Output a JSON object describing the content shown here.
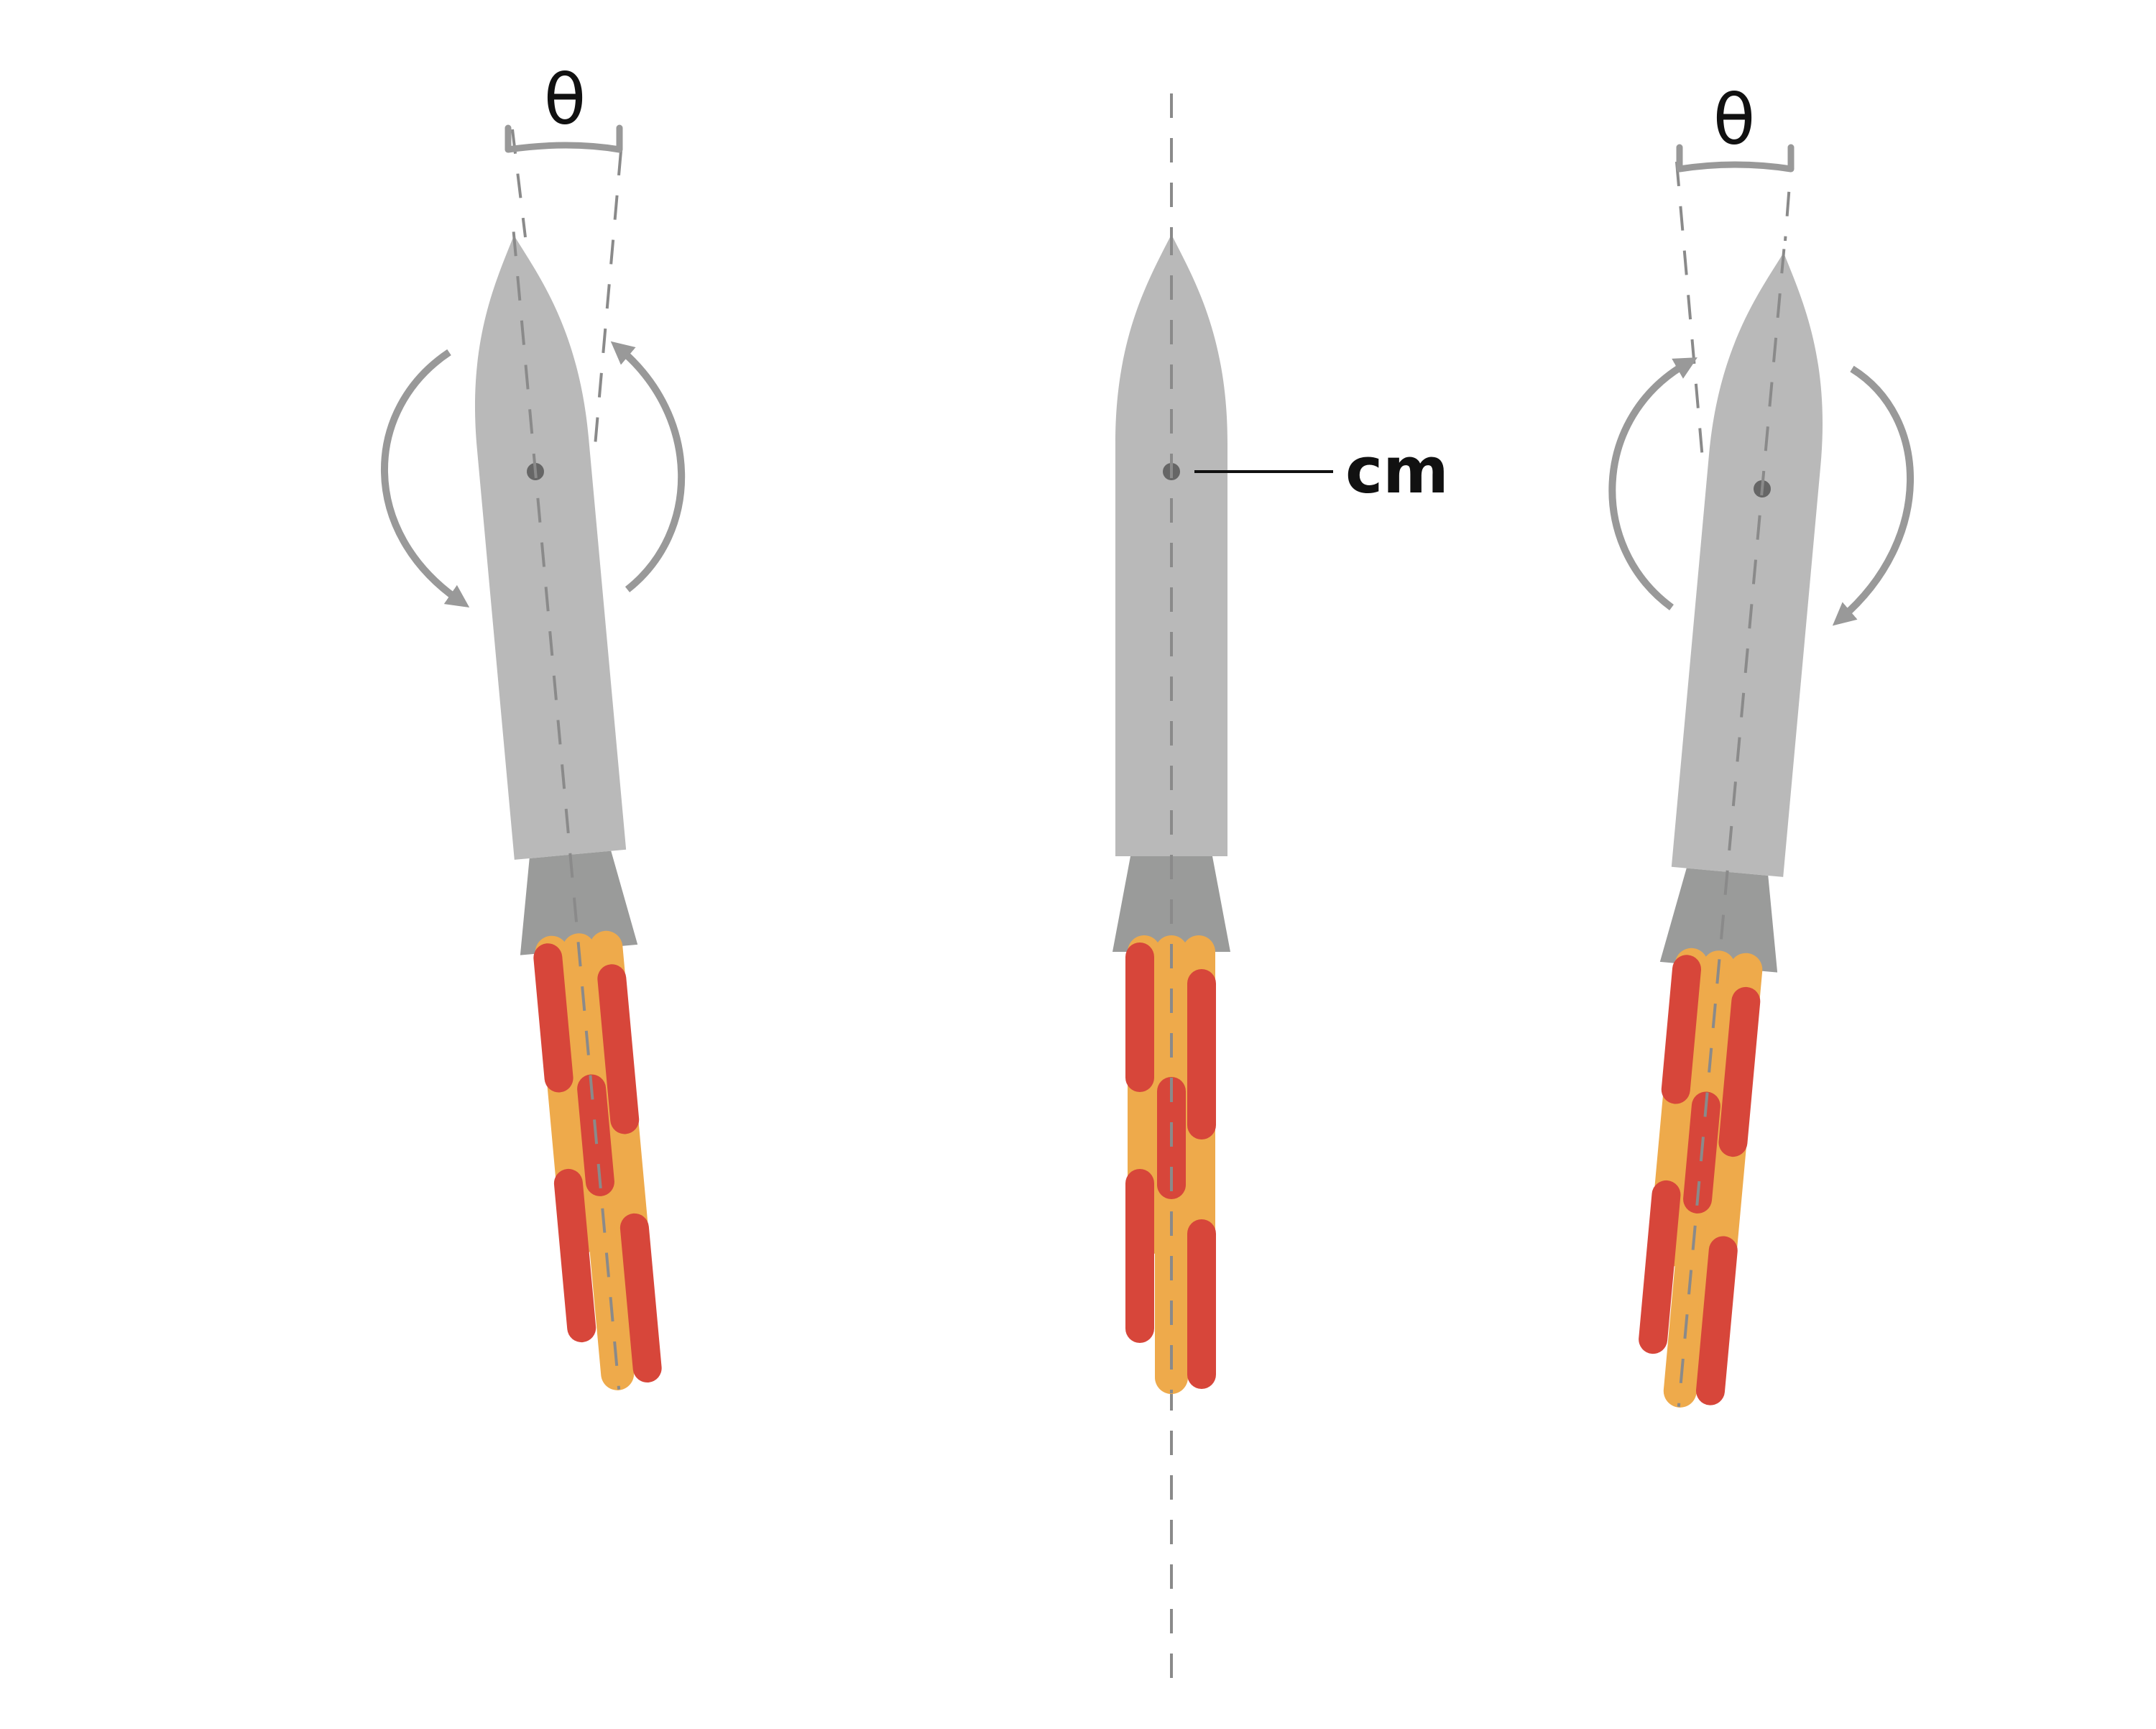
{
  "labels": {
    "theta_left": "θ",
    "theta_right": "θ",
    "center_of_mass": "cm"
  },
  "colors": {
    "background": "#ffffff",
    "body": "#b9b9b9",
    "nozzle": "#9a9b9a",
    "arrow": "#999999",
    "axis_dash": "#8a8a8a",
    "flame_outer": "#eeaa4b",
    "flame_inner": "#d7463a",
    "cm_dot": "#666666",
    "leader_line": "#111111"
  },
  "rockets": [
    {
      "name": "left-rocket",
      "tilt": "left",
      "rotation_arrows": [
        "counterclockwise-right",
        "clockwise-left"
      ]
    },
    {
      "name": "center-rocket",
      "tilt": "vertical"
    },
    {
      "name": "right-rocket",
      "tilt": "right",
      "rotation_arrows": [
        "clockwise-right",
        "counterclockwise-left"
      ]
    }
  ]
}
